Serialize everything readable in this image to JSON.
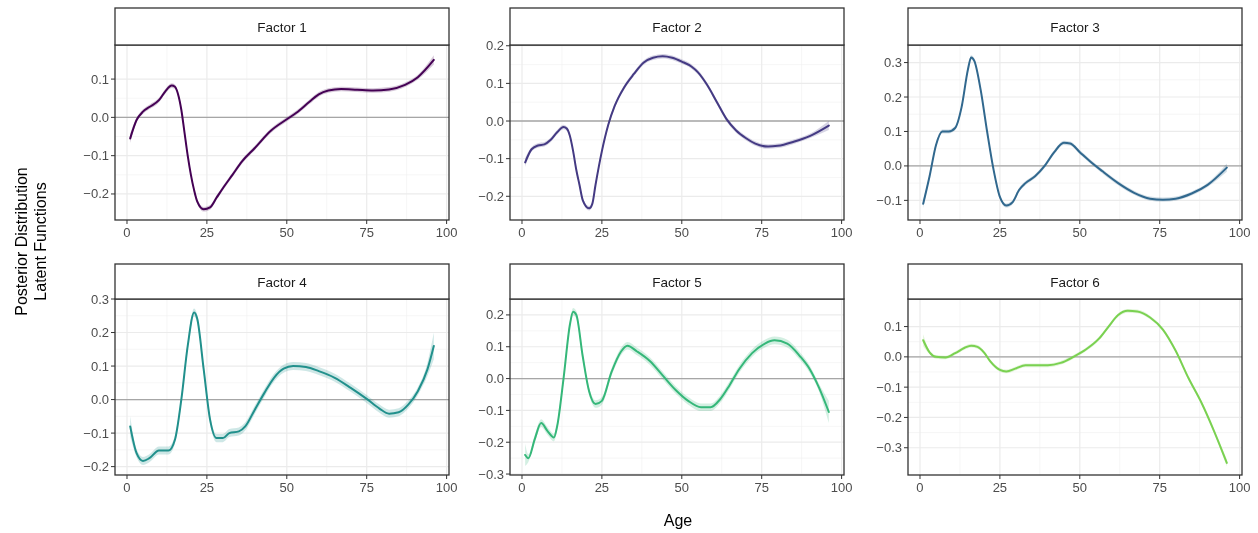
{
  "chart_data": [
    {
      "type": "line",
      "title": "Factor 1",
      "ylabel": "Posterior Distribution\nLatent Functions",
      "xlim": [
        -3.75,
        100.75
      ],
      "xticks": [
        0,
        25,
        50,
        75,
        100
      ],
      "ylim": [
        -0.268,
        0.189
      ],
      "yticks": [
        {
          "value": -0.2,
          "label": "−0.2"
        },
        {
          "value": -0.1,
          "label": "−0.1"
        },
        {
          "value": 0,
          "label": "0.0"
        },
        {
          "value": 0.1,
          "label": "0.1"
        }
      ],
      "grid": true,
      "ref_lines": [
        {
          "axis": "y",
          "value": 0,
          "color": "#a6a6a6"
        }
      ],
      "series": [
        {
          "color": "#440154",
          "x": [
            1,
            3,
            5,
            7,
            10,
            12,
            14,
            15,
            16,
            17,
            18,
            19,
            20,
            21,
            22,
            24,
            26,
            28,
            30,
            33,
            36,
            40,
            45,
            50,
            53,
            57,
            60,
            63,
            67,
            72,
            77,
            82,
            87,
            91,
            96
          ],
          "values": [
            -0.055,
            -0.007,
            0.015,
            0.027,
            0.045,
            0.068,
            0.083,
            0.08,
            0.06,
            0.02,
            -0.04,
            -0.1,
            -0.15,
            -0.19,
            -0.22,
            -0.24,
            -0.235,
            -0.21,
            -0.185,
            -0.15,
            -0.115,
            -0.08,
            -0.035,
            -0.005,
            0.012,
            0.04,
            0.06,
            0.07,
            0.074,
            0.072,
            0.07,
            0.073,
            0.085,
            0.105,
            0.15
          ],
          "lower": [
            -0.067,
            -0.013,
            0.009,
            0.021,
            0.039,
            0.062,
            0.077,
            0.074,
            0.054,
            0.014,
            -0.046,
            -0.106,
            -0.156,
            -0.196,
            -0.226,
            -0.246,
            -0.241,
            -0.216,
            -0.191,
            -0.156,
            -0.121,
            -0.086,
            -0.041,
            -0.011,
            0.006,
            0.034,
            0.054,
            0.064,
            0.068,
            0.066,
            0.064,
            0.067,
            0.079,
            0.099,
            0.138
          ],
          "upper": [
            -0.043,
            -0.001,
            0.021,
            0.033,
            0.051,
            0.074,
            0.089,
            0.086,
            0.066,
            0.026,
            -0.034,
            -0.094,
            -0.144,
            -0.184,
            -0.214,
            -0.234,
            -0.229,
            -0.204,
            -0.179,
            -0.144,
            -0.109,
            -0.074,
            -0.029,
            0.001,
            0.018,
            0.046,
            0.066,
            0.076,
            0.08,
            0.078,
            0.076,
            0.079,
            0.091,
            0.111,
            0.162
          ]
        }
      ]
    },
    {
      "type": "line",
      "title": "Factor 2",
      "xlim": [
        -3.75,
        100.75
      ],
      "xticks": [
        0,
        25,
        50,
        75,
        100
      ],
      "ylim": [
        -0.263,
        0.202
      ],
      "yticks": [
        {
          "value": -0.2,
          "label": "−0.2"
        },
        {
          "value": -0.1,
          "label": "−0.1"
        },
        {
          "value": 0,
          "label": "0.0"
        },
        {
          "value": 0.1,
          "label": "0.1"
        },
        {
          "value": 0.2,
          "label": "0.2"
        }
      ],
      "grid": true,
      "ref_lines": [
        {
          "axis": "y",
          "value": 0,
          "color": "#a6a6a6"
        }
      ],
      "series": [
        {
          "color": "#443a83",
          "x": [
            1,
            3,
            5,
            7,
            9,
            11,
            13,
            14,
            15,
            16,
            17,
            18,
            19,
            21,
            22,
            23,
            25,
            27,
            29,
            32,
            35,
            38,
            41,
            44,
            47,
            50,
            53,
            55,
            58,
            61,
            64,
            67,
            70,
            73,
            77,
            80,
            85,
            90,
            96
          ],
          "values": [
            -0.11,
            -0.075,
            -0.065,
            -0.062,
            -0.05,
            -0.03,
            -0.016,
            -0.02,
            -0.04,
            -0.08,
            -0.13,
            -0.17,
            -0.21,
            -0.232,
            -0.22,
            -0.17,
            -0.08,
            -0.01,
            0.04,
            0.09,
            0.125,
            0.155,
            0.168,
            0.172,
            0.168,
            0.158,
            0.145,
            0.13,
            0.095,
            0.05,
            0.005,
            -0.025,
            -0.045,
            -0.06,
            -0.068,
            -0.066,
            -0.055,
            -0.04,
            -0.012
          ],
          "lower": [
            -0.122,
            -0.081,
            -0.071,
            -0.068,
            -0.056,
            -0.036,
            -0.022,
            -0.026,
            -0.046,
            -0.086,
            -0.136,
            -0.176,
            -0.216,
            -0.238,
            -0.226,
            -0.176,
            -0.086,
            -0.016,
            0.034,
            0.084,
            0.119,
            0.149,
            0.162,
            0.166,
            0.162,
            0.152,
            0.139,
            0.124,
            0.089,
            0.044,
            -0.001,
            -0.031,
            -0.051,
            -0.066,
            -0.074,
            -0.072,
            -0.061,
            -0.046,
            -0.024
          ],
          "upper": [
            -0.098,
            -0.069,
            -0.059,
            -0.056,
            -0.044,
            -0.024,
            -0.01,
            -0.014,
            -0.034,
            -0.074,
            -0.124,
            -0.164,
            -0.204,
            -0.226,
            -0.214,
            -0.164,
            -0.074,
            -0.004,
            0.046,
            0.096,
            0.131,
            0.161,
            0.174,
            0.178,
            0.174,
            0.164,
            0.151,
            0.136,
            0.101,
            0.056,
            0.011,
            -0.019,
            -0.039,
            -0.054,
            -0.062,
            -0.06,
            -0.049,
            -0.034,
            0
          ]
        }
      ]
    },
    {
      "type": "line",
      "title": "Factor 3",
      "xlim": [
        -3.75,
        100.75
      ],
      "xticks": [
        0,
        25,
        50,
        75,
        100
      ],
      "ylim": [
        -0.157,
        0.351
      ],
      "yticks": [
        {
          "value": -0.1,
          "label": "−0.1"
        },
        {
          "value": 0,
          "label": "0.0"
        },
        {
          "value": 0.1,
          "label": "0.1"
        },
        {
          "value": 0.2,
          "label": "0.2"
        },
        {
          "value": 0.3,
          "label": "0.3"
        }
      ],
      "grid": true,
      "ref_lines": [
        {
          "axis": "y",
          "value": 0,
          "color": "#a6a6a6"
        }
      ],
      "series": [
        {
          "color": "#31688e",
          "x": [
            1,
            3,
            5,
            7,
            9,
            11,
            13,
            15,
            16,
            17,
            19,
            21,
            23,
            25,
            27,
            29,
            31,
            33,
            36,
            39,
            42,
            45,
            47,
            50,
            53,
            57,
            62,
            67,
            72,
            76,
            80,
            85,
            90,
            96
          ],
          "values": [
            -0.11,
            -0.03,
            0.06,
            0.1,
            0.1,
            0.11,
            0.17,
            0.28,
            0.315,
            0.305,
            0.22,
            0.1,
            -0.01,
            -0.09,
            -0.115,
            -0.105,
            -0.07,
            -0.05,
            -0.03,
            0,
            0.04,
            0.067,
            0.065,
            0.04,
            0.015,
            -0.015,
            -0.05,
            -0.078,
            -0.095,
            -0.098,
            -0.095,
            -0.08,
            -0.055,
            -0.005
          ],
          "lower": [
            -0.122,
            -0.036,
            0.054,
            0.094,
            0.094,
            0.104,
            0.164,
            0.274,
            0.309,
            0.299,
            0.214,
            0.094,
            -0.016,
            -0.096,
            -0.121,
            -0.111,
            -0.076,
            -0.056,
            -0.036,
            -0.006,
            0.034,
            0.061,
            0.059,
            0.034,
            0.009,
            -0.021,
            -0.056,
            -0.084,
            -0.101,
            -0.104,
            -0.101,
            -0.086,
            -0.061,
            -0.017
          ],
          "upper": [
            -0.098,
            -0.024,
            0.066,
            0.106,
            0.106,
            0.116,
            0.176,
            0.286,
            0.321,
            0.311,
            0.226,
            0.106,
            -0.004,
            -0.084,
            -0.109,
            -0.099,
            -0.064,
            -0.044,
            -0.024,
            0.006,
            0.046,
            0.073,
            0.071,
            0.046,
            0.021,
            -0.009,
            -0.044,
            -0.072,
            -0.089,
            -0.092,
            -0.089,
            -0.074,
            -0.049,
            0.007
          ]
        }
      ]
    },
    {
      "type": "line",
      "title": "Factor 4",
      "xlim": [
        -3.75,
        100.75
      ],
      "xticks": [
        0,
        25,
        50,
        75,
        100
      ],
      "ylim": [
        -0.225,
        0.3
      ],
      "yticks": [
        {
          "value": -0.2,
          "label": "−0.2"
        },
        {
          "value": -0.1,
          "label": "−0.1"
        },
        {
          "value": 0,
          "label": "0.0"
        },
        {
          "value": 0.1,
          "label": "0.1"
        },
        {
          "value": 0.2,
          "label": "0.2"
        },
        {
          "value": 0.3,
          "label": "0.3"
        }
      ],
      "grid": true,
      "ref_lines": [
        {
          "axis": "y",
          "value": 0,
          "color": "#a6a6a6"
        }
      ],
      "series": [
        {
          "color": "#21908c",
          "x": [
            1,
            3,
            5,
            7,
            10,
            13,
            15,
            17,
            19,
            21,
            22,
            24,
            26,
            28,
            30,
            32,
            35,
            37,
            40,
            43,
            46,
            49,
            52,
            56,
            60,
            65,
            70,
            75,
            79,
            82,
            85,
            88,
            91,
            94,
            96
          ],
          "values": [
            -0.08,
            -0.16,
            -0.183,
            -0.175,
            -0.152,
            -0.152,
            -0.12,
            0,
            0.16,
            0.26,
            0.24,
            0.09,
            -0.06,
            -0.115,
            -0.115,
            -0.1,
            -0.095,
            -0.08,
            -0.03,
            0.02,
            0.065,
            0.092,
            0.1,
            0.097,
            0.085,
            0.065,
            0.035,
            0.002,
            -0.027,
            -0.042,
            -0.038,
            -0.015,
            0.025,
            0.09,
            0.16
          ],
          "lower": [
            -0.11,
            -0.172,
            -0.195,
            -0.187,
            -0.164,
            -0.164,
            -0.132,
            -0.012,
            0.148,
            0.248,
            0.228,
            0.078,
            -0.072,
            -0.127,
            -0.127,
            -0.112,
            -0.107,
            -0.092,
            -0.042,
            0.008,
            0.053,
            0.08,
            0.088,
            0.085,
            0.073,
            0.053,
            0.023,
            -0.01,
            -0.039,
            -0.054,
            -0.05,
            -0.027,
            0.013,
            0.07,
            0.12
          ],
          "upper": [
            -0.05,
            -0.148,
            -0.171,
            -0.163,
            -0.14,
            -0.14,
            -0.108,
            0.012,
            0.172,
            0.272,
            0.252,
            0.102,
            -0.048,
            -0.103,
            -0.103,
            -0.088,
            -0.083,
            -0.068,
            -0.018,
            0.032,
            0.077,
            0.104,
            0.112,
            0.109,
            0.097,
            0.077,
            0.047,
            0.014,
            -0.015,
            -0.03,
            -0.026,
            -0.003,
            0.037,
            0.11,
            0.2
          ]
        }
      ]
    },
    {
      "type": "line",
      "title": "Factor 5",
      "xlabel": "Age",
      "xlim": [
        -3.75,
        100.75
      ],
      "xticks": [
        0,
        25,
        50,
        75,
        100
      ],
      "ylim": [
        -0.303,
        0.25
      ],
      "yticks": [
        {
          "value": -0.3,
          "label": "−0.3"
        },
        {
          "value": -0.2,
          "label": "−0.2"
        },
        {
          "value": -0.1,
          "label": "−0.1"
        },
        {
          "value": 0,
          "label": "0.0"
        },
        {
          "value": 0.1,
          "label": "0.1"
        },
        {
          "value": 0.2,
          "label": "0.2"
        }
      ],
      "grid": true,
      "ref_lines": [
        {
          "axis": "y",
          "value": 0,
          "color": "#a6a6a6"
        }
      ],
      "series": [
        {
          "color": "#35b779",
          "x": [
            1,
            2,
            4,
            6,
            8,
            10,
            11,
            13,
            15,
            16,
            17,
            19,
            21,
            23,
            25,
            28,
            31,
            33,
            36,
            40,
            44,
            48,
            52,
            56,
            59,
            62,
            65,
            68,
            72,
            76,
            79,
            83,
            87,
            90,
            93,
            96
          ],
          "values": [
            -0.24,
            -0.25,
            -0.19,
            -0.14,
            -0.165,
            -0.185,
            -0.15,
            0,
            0.17,
            0.21,
            0.2,
            0.07,
            -0.04,
            -0.08,
            -0.07,
            0.02,
            0.085,
            0.103,
            0.085,
            0.055,
            0.01,
            -0.035,
            -0.07,
            -0.09,
            -0.09,
            -0.065,
            -0.02,
            0.03,
            0.08,
            0.11,
            0.12,
            0.11,
            0.07,
            0.03,
            -0.03,
            -0.105
          ],
          "lower": [
            -0.275,
            -0.262,
            -0.202,
            -0.152,
            -0.177,
            -0.197,
            -0.162,
            -0.012,
            0.158,
            0.198,
            0.188,
            0.058,
            -0.052,
            -0.092,
            -0.082,
            0.008,
            0.073,
            0.091,
            0.073,
            0.043,
            -0.002,
            -0.047,
            -0.082,
            -0.102,
            -0.102,
            -0.077,
            -0.032,
            0.018,
            0.068,
            0.098,
            0.108,
            0.098,
            0.058,
            0.018,
            -0.042,
            -0.14
          ],
          "upper": [
            -0.205,
            -0.238,
            -0.178,
            -0.128,
            -0.153,
            -0.173,
            -0.138,
            0.012,
            0.182,
            0.222,
            0.212,
            0.082,
            -0.028,
            -0.068,
            -0.058,
            0.032,
            0.097,
            0.115,
            0.097,
            0.067,
            0.022,
            -0.023,
            -0.058,
            -0.078,
            -0.078,
            -0.053,
            -0.008,
            0.042,
            0.092,
            0.122,
            0.132,
            0.122,
            0.082,
            0.042,
            -0.018,
            -0.07
          ]
        }
      ]
    },
    {
      "type": "line",
      "title": "Factor 6",
      "xlim": [
        -3.75,
        100.75
      ],
      "xticks": [
        0,
        25,
        50,
        75,
        100
      ],
      "ylim": [
        -0.39,
        0.191
      ],
      "yticks": [
        {
          "value": -0.3,
          "label": "−0.3"
        },
        {
          "value": -0.2,
          "label": "−0.2"
        },
        {
          "value": -0.1,
          "label": "−0.1"
        },
        {
          "value": 0,
          "label": "0.0"
        },
        {
          "value": 0.1,
          "label": "0.1"
        }
      ],
      "grid": true,
      "ref_lines": [
        {
          "axis": "y",
          "value": 0,
          "color": "#a6a6a6"
        }
      ],
      "series": [
        {
          "color": "#7ad151",
          "x": [
            1,
            3,
            5,
            8,
            11,
            14,
            16,
            18,
            20,
            22,
            25,
            27,
            30,
            33,
            36,
            40,
            44,
            48,
            52,
            56,
            59,
            62,
            65,
            68,
            72,
            76,
            80,
            84,
            88,
            92,
            96
          ],
          "values": [
            0.055,
            0.015,
            0,
            -0.002,
            0.012,
            0.03,
            0.037,
            0.033,
            0.015,
            -0.015,
            -0.043,
            -0.048,
            -0.038,
            -0.028,
            -0.028,
            -0.028,
            -0.02,
            0,
            0.025,
            0.06,
            0.1,
            0.138,
            0.152,
            0.15,
            0.13,
            0.09,
            0.02,
            -0.07,
            -0.15,
            -0.245,
            -0.35
          ],
          "lower": [
            0.035,
            0.009,
            -0.006,
            -0.008,
            0.006,
            0.024,
            0.031,
            0.027,
            0.009,
            -0.021,
            -0.049,
            -0.054,
            -0.044,
            -0.034,
            -0.034,
            -0.034,
            -0.026,
            -0.006,
            0.019,
            0.054,
            0.094,
            0.132,
            0.146,
            0.144,
            0.124,
            0.084,
            0.014,
            -0.076,
            -0.156,
            -0.251,
            -0.362
          ],
          "upper": [
            0.075,
            0.021,
            0.006,
            0.004,
            0.018,
            0.036,
            0.043,
            0.039,
            0.021,
            -0.009,
            -0.037,
            -0.042,
            -0.032,
            -0.022,
            -0.022,
            -0.022,
            -0.014,
            0.006,
            0.031,
            0.066,
            0.106,
            0.144,
            0.158,
            0.156,
            0.136,
            0.096,
            0.026,
            -0.064,
            -0.144,
            -0.239,
            -0.338
          ]
        }
      ]
    }
  ]
}
